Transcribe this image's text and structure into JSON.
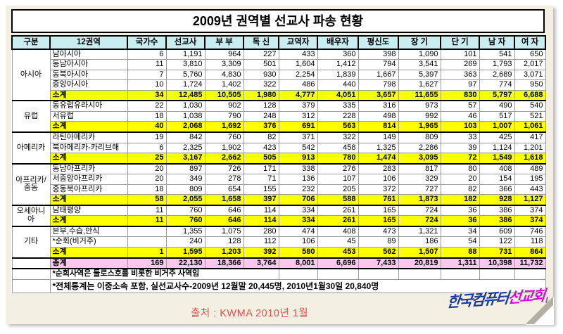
{
  "title": "2009년 권역별 선교사 파송 현황",
  "columns": [
    "구분",
    "12권역",
    "국가수",
    "선교사",
    "부 부",
    "독 신",
    "교역자",
    "배우자",
    "평신도",
    "장 기",
    "단 기",
    "남 자",
    "여 자"
  ],
  "groups": [
    {
      "name": "아시아",
      "rows": [
        {
          "region": "남아시아",
          "subtotal": false,
          "values": [
            "6",
            "1,191",
            "964",
            "227",
            "433",
            "360",
            "398",
            "1,090",
            "101",
            "541",
            "650"
          ]
        },
        {
          "region": "동남아시아",
          "subtotal": false,
          "values": [
            "11",
            "3,810",
            "3,309",
            "501",
            "1,604",
            "1,412",
            "794",
            "3,541",
            "269",
            "1,793",
            "2,017"
          ]
        },
        {
          "region": "동북아시아",
          "subtotal": false,
          "values": [
            "7",
            "5,760",
            "4,830",
            "930",
            "2,254",
            "1,839",
            "1,667",
            "5,397",
            "363",
            "2,689",
            "3,071"
          ]
        },
        {
          "region": "중앙아시아",
          "subtotal": false,
          "values": [
            "10",
            "1,724",
            "1,402",
            "322",
            "486",
            "440",
            "798",
            "1,627",
            "97",
            "774",
            "950"
          ]
        },
        {
          "region": "소계",
          "subtotal": true,
          "values": [
            "34",
            "12,485",
            "10,505",
            "1,980",
            "4,777",
            "4,051",
            "3,657",
            "11,655",
            "830",
            "5,797",
            "6,688"
          ]
        }
      ]
    },
    {
      "name": "유럽",
      "rows": [
        {
          "region": "동유럽유라시아",
          "subtotal": false,
          "values": [
            "22",
            "1,030",
            "902",
            "128",
            "379",
            "335",
            "316",
            "973",
            "57",
            "490",
            "540"
          ]
        },
        {
          "region": "서유럽",
          "subtotal": false,
          "values": [
            "18",
            "1,038",
            "790",
            "248",
            "312",
            "228",
            "498",
            "992",
            "46",
            "517",
            "521"
          ]
        },
        {
          "region": "소계",
          "subtotal": true,
          "values": [
            "40",
            "2,068",
            "1,692",
            "376",
            "691",
            "563",
            "814",
            "1,965",
            "103",
            "1,007",
            "1,061"
          ]
        }
      ]
    },
    {
      "name": "아메리카",
      "rows": [
        {
          "region": "라틴아메리카",
          "subtotal": false,
          "values": [
            "19",
            "842",
            "760",
            "82",
            "371",
            "322",
            "149",
            "809",
            "33",
            "425",
            "417"
          ]
        },
        {
          "region": "북아메리카-카리브해",
          "subtotal": false,
          "values": [
            "6",
            "2,325",
            "1,902",
            "423",
            "542",
            "458",
            "1,325",
            "2,286",
            "39",
            "1,124",
            "1,201"
          ]
        },
        {
          "region": "소계",
          "subtotal": true,
          "values": [
            "25",
            "3,167",
            "2,662",
            "505",
            "913",
            "780",
            "1,474",
            "3,095",
            "72",
            "1,549",
            "1,618"
          ]
        }
      ]
    },
    {
      "name": "아프리카/중동",
      "rows": [
        {
          "region": "동남아프리카",
          "subtotal": false,
          "values": [
            "20",
            "897",
            "726",
            "171",
            "338",
            "276",
            "283",
            "817",
            "80",
            "408",
            "489"
          ]
        },
        {
          "region": "서중앙아프리카",
          "subtotal": false,
          "values": [
            "20",
            "349",
            "278",
            "71",
            "136",
            "107",
            "106",
            "329",
            "20",
            "154",
            "195"
          ]
        },
        {
          "region": "중동북아프리카",
          "subtotal": false,
          "values": [
            "18",
            "809",
            "654",
            "155",
            "232",
            "205",
            "372",
            "727",
            "82",
            "366",
            "443"
          ]
        },
        {
          "region": "소계",
          "subtotal": true,
          "values": [
            "58",
            "2,055",
            "1,658",
            "397",
            "706",
            "588",
            "761",
            "1,873",
            "182",
            "928",
            "1,127"
          ]
        }
      ]
    },
    {
      "name": "오세아니아",
      "rows": [
        {
          "region": "남태평양",
          "subtotal": false,
          "values": [
            "11",
            "760",
            "646",
            "114",
            "334",
            "261",
            "165",
            "724",
            "36",
            "386",
            "374"
          ]
        },
        {
          "region": "소계",
          "subtotal": true,
          "values": [
            "11",
            "760",
            "646",
            "114",
            "334",
            "261",
            "165",
            "724",
            "36",
            "386",
            "374"
          ]
        }
      ]
    },
    {
      "name": "기타",
      "rows": [
        {
          "region": "본부,수습,안식",
          "subtotal": false,
          "values": [
            "",
            "1,355",
            "1,075",
            "280",
            "474",
            "408",
            "473",
            "1,321",
            "34",
            "609",
            "746"
          ]
        },
        {
          "region": "*순회(비거주)",
          "subtotal": false,
          "values": [
            "",
            "240",
            "128",
            "112",
            "106",
            "45",
            "89",
            "186",
            "54",
            "122",
            "118"
          ]
        },
        {
          "region": "소계",
          "subtotal": true,
          "values": [
            "1",
            "1,595",
            "1,203",
            "392",
            "580",
            "453",
            "562",
            "1,507",
            "88",
            "731",
            "864"
          ]
        }
      ]
    }
  ],
  "total": {
    "label": "총계",
    "values": [
      "169",
      "22,130",
      "18,366",
      "3,764",
      "8,001",
      "6,696",
      "7,433",
      "20,819",
      "1,311",
      "10,398",
      "11,732"
    ]
  },
  "footnotes": [
    "*순회사역은 둘로스호를 비롯한 비거주 사역임",
    "*전체통계는 이중소속 포함, 실선교사수-2009년 12월말 20,445명, 2010년1월30일 20,840명"
  ],
  "source": "출처 : KWMA 2010년 1월",
  "logo": {
    "primary": "한국컴퓨터",
    "accent": "선교회"
  },
  "colors": {
    "header_bg": "#c9eef2",
    "subtotal_bg": "#ffff00",
    "total_bg": "#fac7ef",
    "source_text": "#e0524c",
    "logo_primary": "#1d3c94",
    "logo_accent": "#cf10d0",
    "paper_bg": "#f3efe2"
  }
}
